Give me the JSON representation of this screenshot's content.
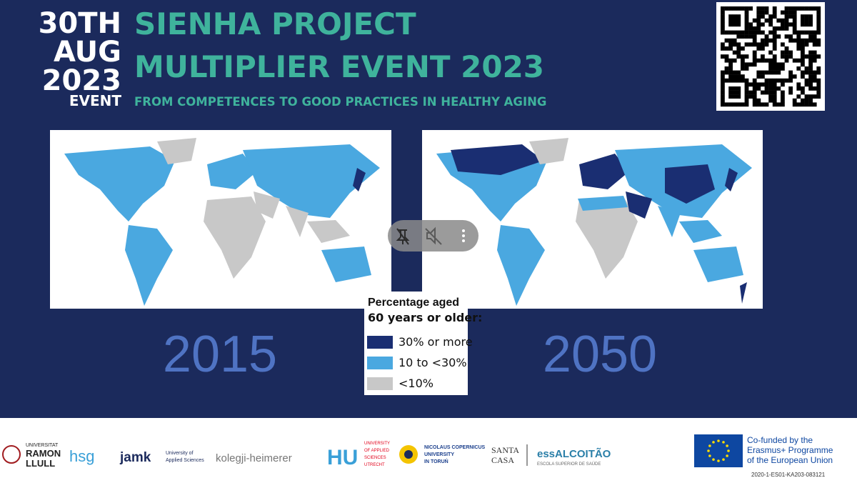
{
  "header": {
    "date_day": "30TH",
    "date_month": "AUG",
    "date_year": "2023",
    "date_label": "EVENT",
    "title_lines": [
      "SIENHA PROJECT",
      "MULTIPLIER EVENT 2023"
    ],
    "subtitle": "FROM COMPETENCES TO GOOD PRACTICES IN HEALTHY AGING"
  },
  "maps": [
    {
      "year": "2015"
    },
    {
      "year": "2050"
    }
  ],
  "legend": {
    "title_lines": [
      "Percentage aged",
      "60 years or older:"
    ],
    "items": [
      {
        "label": "30% or more",
        "color": "#1a2e72"
      },
      {
        "label": "10 to <30%",
        "color": "#4aa8e0"
      },
      {
        "label": "<10%",
        "color": "#c8c8c8"
      }
    ]
  },
  "footer": {
    "logos": {
      "rl": [
        "UNIVERSITAT",
        "RAMON",
        "LLULL"
      ],
      "hsg": "hsg",
      "jamk": [
        "jamk",
        "University of",
        "Applied Sciences"
      ],
      "kolegji": "kolegji-heimerer",
      "hu": [
        "HU",
        "UNIVERSITY",
        "OF APPLIED",
        "SCIENCES",
        "UTRECHT"
      ],
      "ncu": [
        "NICOLAUS COPERNICUS",
        "UNIVERSITY",
        "IN TORUŃ"
      ],
      "santa": [
        "SANTA",
        "CASA"
      ],
      "ess": [
        "essALCOITÃO",
        "ESCOLA SUPERIOR DE SAÚDE"
      ]
    },
    "funding": [
      "Co-funded by the",
      "Erasmus+ Programme",
      "of the European Union"
    ],
    "code": "2020-1-ES01-KA203-083121"
  }
}
